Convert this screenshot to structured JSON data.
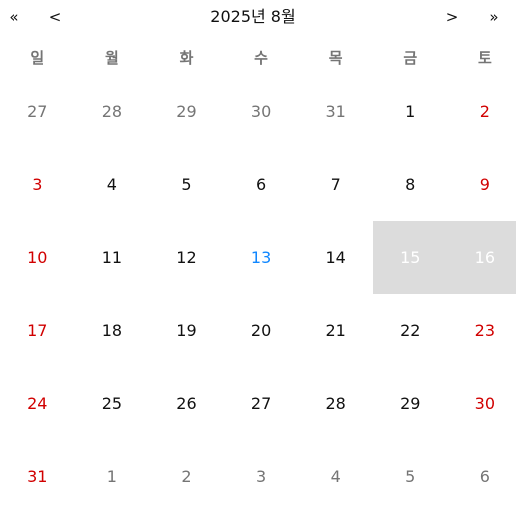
{
  "nav": {
    "prev_year": "«",
    "prev_month": "<",
    "title": "2025년 8월",
    "next_month": ">",
    "next_year": "»"
  },
  "weekdays": [
    "일",
    "월",
    "화",
    "수",
    "목",
    "금",
    "토"
  ],
  "colors": {
    "weekend": "#d10000",
    "neighbor_month": "#757575",
    "today": "#1087ff",
    "selected_range_bg": "#dcdcdc",
    "selected_range_text": "#ffffff"
  },
  "days": [
    {
      "label": "27",
      "type": "neighbor"
    },
    {
      "label": "28",
      "type": "neighbor"
    },
    {
      "label": "29",
      "type": "neighbor"
    },
    {
      "label": "30",
      "type": "neighbor"
    },
    {
      "label": "31",
      "type": "neighbor"
    },
    {
      "label": "1",
      "type": "normal"
    },
    {
      "label": "2",
      "type": "weekend"
    },
    {
      "label": "3",
      "type": "weekend"
    },
    {
      "label": "4",
      "type": "normal"
    },
    {
      "label": "5",
      "type": "normal"
    },
    {
      "label": "6",
      "type": "normal"
    },
    {
      "label": "7",
      "type": "normal"
    },
    {
      "label": "8",
      "type": "normal"
    },
    {
      "label": "9",
      "type": "weekend"
    },
    {
      "label": "10",
      "type": "weekend"
    },
    {
      "label": "11",
      "type": "normal"
    },
    {
      "label": "12",
      "type": "normal"
    },
    {
      "label": "13",
      "type": "today"
    },
    {
      "label": "14",
      "type": "normal"
    },
    {
      "label": "15",
      "type": "range"
    },
    {
      "label": "16",
      "type": "range"
    },
    {
      "label": "17",
      "type": "weekend"
    },
    {
      "label": "18",
      "type": "normal"
    },
    {
      "label": "19",
      "type": "normal"
    },
    {
      "label": "20",
      "type": "normal"
    },
    {
      "label": "21",
      "type": "normal"
    },
    {
      "label": "22",
      "type": "normal"
    },
    {
      "label": "23",
      "type": "weekend"
    },
    {
      "label": "24",
      "type": "weekend"
    },
    {
      "label": "25",
      "type": "normal"
    },
    {
      "label": "26",
      "type": "normal"
    },
    {
      "label": "27",
      "type": "normal"
    },
    {
      "label": "28",
      "type": "normal"
    },
    {
      "label": "29",
      "type": "normal"
    },
    {
      "label": "30",
      "type": "weekend"
    },
    {
      "label": "31",
      "type": "weekend"
    },
    {
      "label": "1",
      "type": "neighbor"
    },
    {
      "label": "2",
      "type": "neighbor"
    },
    {
      "label": "3",
      "type": "neighbor"
    },
    {
      "label": "4",
      "type": "neighbor"
    },
    {
      "label": "5",
      "type": "neighbor"
    },
    {
      "label": "6",
      "type": "neighbor"
    }
  ]
}
